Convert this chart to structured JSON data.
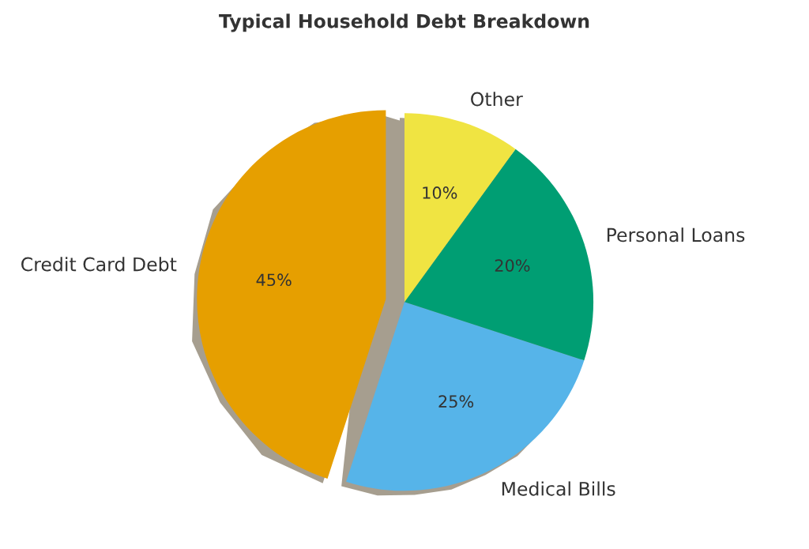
{
  "chart_data": {
    "type": "pie",
    "title": "Typical Household Debt Breakdown",
    "categories": [
      "Credit Card Debt",
      "Medical Bills",
      "Personal Loans",
      "Other"
    ],
    "values": [
      45,
      25,
      20,
      10
    ],
    "colors": [
      "#e69f00",
      "#56b4e9",
      "#009e73",
      "#f0e442"
    ],
    "value_labels": [
      "45%",
      "25%",
      "20%",
      "10%"
    ],
    "legend": false
  }
}
